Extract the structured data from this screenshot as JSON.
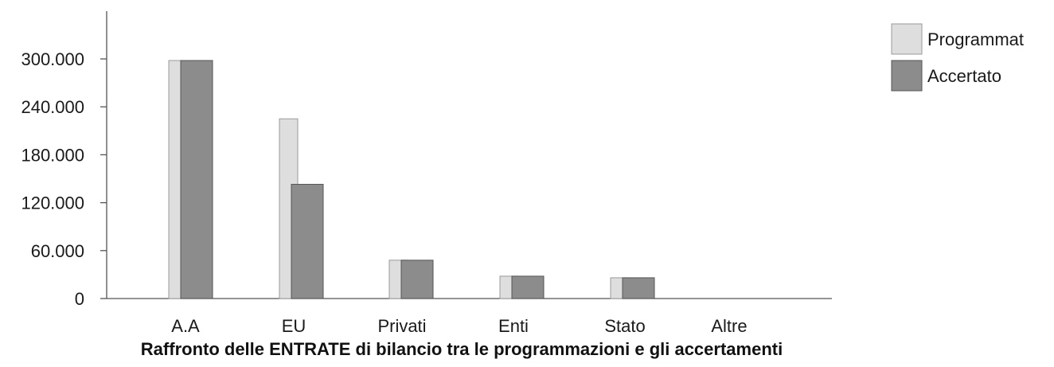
{
  "chart_data": {
    "type": "bar",
    "title": "Raffronto delle ENTRATE di bilancio tra le programmazioni e gli accertamenti",
    "xlabel": "",
    "ylabel": "",
    "categories": [
      "A.A",
      "EU",
      "Privati",
      "Enti",
      "Stato",
      "Altre"
    ],
    "series": [
      {
        "name": "Programmat",
        "values": [
          298000,
          225000,
          48000,
          28000,
          26000,
          0
        ]
      },
      {
        "name": "Accertato",
        "values": [
          298000,
          143000,
          48000,
          28000,
          26000,
          0
        ]
      }
    ],
    "ylim": [
      0,
      360000
    ],
    "yticks": [
      0,
      60000,
      120000,
      180000,
      240000,
      300000
    ],
    "ytick_labels": [
      "0",
      "60.000",
      "120.000",
      "180.000",
      "240.000",
      "300.000"
    ],
    "grid": false,
    "legend_position": "top-right",
    "colors": {
      "Programmat": "#dedede",
      "Accertato": "#8c8c8c"
    }
  }
}
